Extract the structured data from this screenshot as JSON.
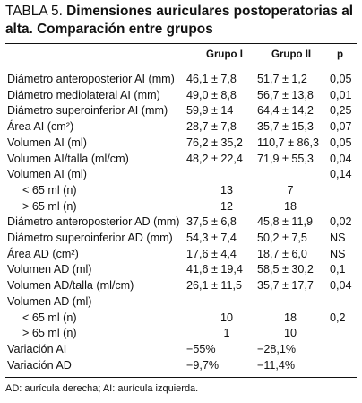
{
  "title": {
    "label": "TABLA 5.",
    "text": "Dimensiones auriculares postoperatorias al alta. Comparación entre grupos"
  },
  "table": {
    "headers": [
      "",
      "Grupo I",
      "Grupo II",
      "p"
    ],
    "rows": [
      {
        "label": "Diámetro anteroposterior AI (mm)",
        "g1": "46,1 ± 7,8",
        "g2": "51,7 ± 1,2",
        "p": "0,05",
        "indent": false,
        "center": false
      },
      {
        "label": "Diámetro mediolateral AI (mm)",
        "g1": "49,0 ± 8,8",
        "g2": "56,7 ± 13,8",
        "p": "0,01",
        "indent": false,
        "center": false
      },
      {
        "label": "Diámetro superoinferior AI (mm)",
        "g1": "59,9 ± 14",
        "g2": "64,4 ± 14,2",
        "p": "0,25",
        "indent": false,
        "center": false
      },
      {
        "label": "Área AI (cm²)",
        "g1": "28,7 ± 7,8",
        "g2": "35,7 ± 15,3",
        "p": "0,07",
        "indent": false,
        "center": false
      },
      {
        "label": "Volumen AI (ml)",
        "g1": "76,2 ± 35,2",
        "g2": "110,7 ± 86,3",
        "p": "0,05",
        "indent": false,
        "center": false
      },
      {
        "label": "Volumen AI/talla (ml/cm)",
        "g1": "48,2 ± 22,4",
        "g2": "71,9 ± 55,3",
        "p": "0,04",
        "indent": false,
        "center": false
      },
      {
        "label": "Volumen AI (ml)",
        "g1": "",
        "g2": "",
        "p": "0,14",
        "indent": false,
        "center": false
      },
      {
        "label": "< 65 ml (n)",
        "g1": "13",
        "g2": "7",
        "p": "",
        "indent": true,
        "center": true
      },
      {
        "label": "> 65 ml (n)",
        "g1": "12",
        "g2": "18",
        "p": "",
        "indent": true,
        "center": true
      },
      {
        "label": "Diámetro anteroposterior AD (mm)",
        "g1": "37,5 ± 6,8",
        "g2": "45,8 ± 11,9",
        "p": "0,02",
        "indent": false,
        "center": false
      },
      {
        "label": "Diámetro superoinferior AD (mm)",
        "g1": "54,3 ± 7,4",
        "g2": "50,2 ± 7,5",
        "p": "NS",
        "indent": false,
        "center": false
      },
      {
        "label": "Área AD (cm²)",
        "g1": "17,6 ± 4,4",
        "g2": "18,7 ± 6,0",
        "p": "NS",
        "indent": false,
        "center": false
      },
      {
        "label": "Volumen AD (ml)",
        "g1": "41,6 ± 19,4",
        "g2": "58,5 ± 30,2",
        "p": "0,1",
        "indent": false,
        "center": false
      },
      {
        "label": "Volumen AD/talla (ml/cm)",
        "g1": "26,1 ± 11,5",
        "g2": "35,7 ± 17,7",
        "p": "0,04",
        "indent": false,
        "center": false
      },
      {
        "label": "Volumen AD (ml)",
        "g1": "",
        "g2": "",
        "p": "",
        "indent": false,
        "center": false
      },
      {
        "label": "< 65 ml (n)",
        "g1": "10",
        "g2": "18",
        "p": "0,2",
        "indent": true,
        "center": true
      },
      {
        "label": "> 65 ml (n)",
        "g1": "1",
        "g2": "10",
        "p": "",
        "indent": true,
        "center": true
      },
      {
        "label": "Variación AI",
        "g1": "−55%",
        "g2": "−28,1%",
        "p": "",
        "indent": false,
        "center": false
      },
      {
        "label": "Variación AD",
        "g1": "−9,7%",
        "g2": "−11,4%",
        "p": "",
        "indent": false,
        "center": false
      }
    ]
  },
  "footnote": "AD: aurícula derecha; AI: aurícula izquierda."
}
